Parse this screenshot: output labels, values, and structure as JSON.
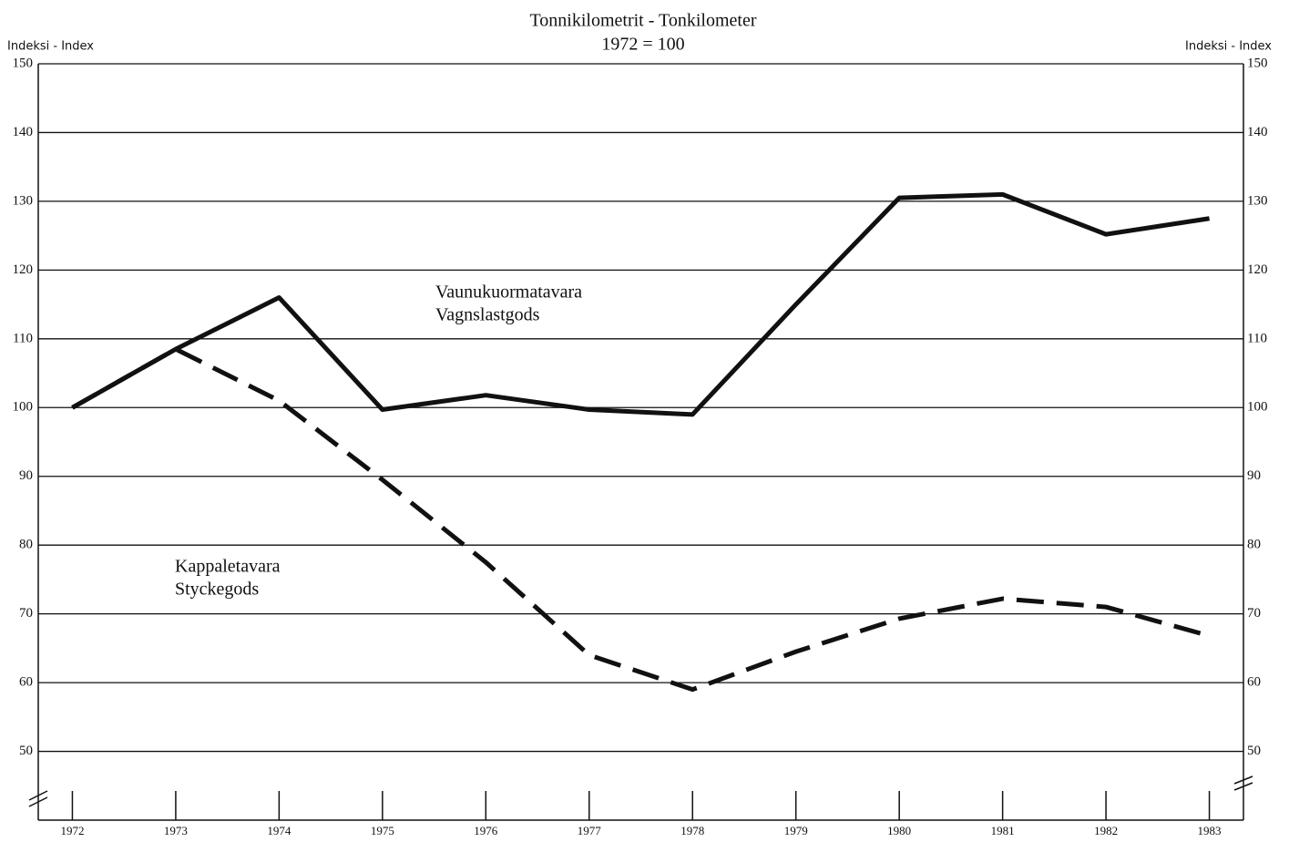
{
  "chart_data": {
    "type": "line",
    "title": "Tonnikilometrit - Tonkilometer",
    "subtitle": "1972 = 100",
    "y_label": "Indeksi - Index",
    "y2_label": "Indeksi - Index",
    "x": [
      1972,
      1973,
      1974,
      1975,
      1976,
      1977,
      1978,
      1979,
      1980,
      1981,
      1982,
      1983
    ],
    "xlim": [
      1971.67,
      1983.33
    ],
    "xticks": [
      1972,
      1973,
      1974,
      1975,
      1976,
      1977,
      1978,
      1979,
      1980,
      1981,
      1982,
      1983
    ],
    "ylim": [
      40,
      150
    ],
    "yticks": [
      50,
      60,
      70,
      80,
      90,
      100,
      110,
      120,
      130,
      140,
      150
    ],
    "grid": true,
    "series": [
      {
        "color": "#111111",
        "style": "solid",
        "values": [
          100,
          108.5,
          116,
          99.7,
          101.8,
          99.7,
          99,
          115,
          130.5,
          131,
          125.2,
          127.5
        ]
      },
      {
        "color": "#111111",
        "style": "dashed",
        "values": [
          100,
          108.5,
          101,
          89.5,
          77.5,
          64,
          59,
          64.5,
          69.3,
          72.2,
          71,
          66.8
        ]
      }
    ],
    "annotations": [
      {
        "lines": [
          "Vaunukuormatavara",
          "Vagnslastgods"
        ]
      },
      {
        "lines": [
          "Kappaletavara",
          "Styckegods"
        ]
      }
    ]
  }
}
